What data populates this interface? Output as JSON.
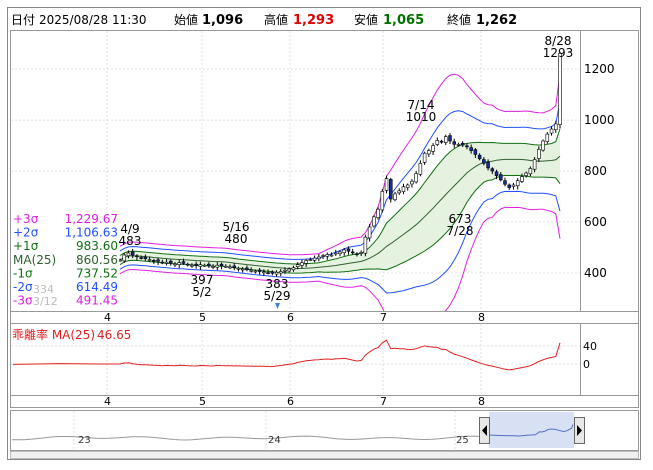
{
  "header": {
    "date_label": "日付",
    "datetime": "2025/08/28 11:30",
    "open_label": "始値",
    "open_value": "1,096",
    "high_label": "高値",
    "high_value": "1,293",
    "low_label": "安値",
    "low_value": "1,065",
    "close_label": "終値",
    "close_value": "1,262"
  },
  "colors": {
    "high": "#e00000",
    "low": "#007000",
    "band3": "#e020e0",
    "band2": "#2050ff",
    "band1": "#107010",
    "ma": "#306030",
    "candle_up": "#ffffff",
    "candle_down": "#1030a0",
    "deviation": "#e02020"
  },
  "legend": [
    {
      "label": "+3σ",
      "value": "1,229.67",
      "color": "#e020e0"
    },
    {
      "label": "+2σ",
      "value": "1,106.63",
      "color": "#2050ff"
    },
    {
      "label": "+1σ",
      "value": "983.60",
      "color": "#107010"
    },
    {
      "label": "MA(25)",
      "value": "860.56",
      "color": "#306030"
    },
    {
      "label": "-1σ",
      "value": "737.52",
      "color": "#107010"
    },
    {
      "label": "-2σ",
      "value": "614.49",
      "color": "#2050ff"
    },
    {
      "label": "-3σ",
      "value": "491.45",
      "color": "#e020e0"
    }
  ],
  "ghost_labels": [
    "334",
    "3/12"
  ],
  "price_axis": {
    "ticks": [
      "1200",
      "1000",
      "800",
      "600",
      "400"
    ]
  },
  "month_labels": [
    "4",
    "5",
    "6",
    "7",
    "8"
  ],
  "annotations": [
    {
      "date": "4/9",
      "value": "483"
    },
    {
      "date": "5/2",
      "value": "397"
    },
    {
      "date": "5/16",
      "value": "480"
    },
    {
      "date": "5/29",
      "value": "383"
    },
    {
      "date": "7/14",
      "value": "1010"
    },
    {
      "date": "7/28",
      "value": "673"
    },
    {
      "date": "8/28",
      "value": "1293"
    }
  ],
  "deviation": {
    "title": "乖離率 MA(25)",
    "value": "46.65",
    "ticks": [
      "40",
      "0"
    ]
  },
  "navigator": {
    "labels": [
      "23",
      "24",
      "25"
    ]
  },
  "chart_data": {
    "type": "candlestick",
    "ylim": [
      250,
      1350
    ],
    "series_close": [
      450,
      470,
      478,
      470,
      463,
      458,
      455,
      452,
      447,
      445,
      440,
      442,
      438,
      435,
      440,
      437,
      433,
      430,
      428,
      432,
      430,
      427,
      425,
      430,
      428,
      426,
      423,
      420,
      418,
      415,
      412,
      410,
      407,
      405,
      404,
      400,
      398,
      402,
      405,
      410,
      415,
      420,
      432,
      440,
      448,
      452,
      458,
      462,
      468,
      472,
      470,
      478,
      482,
      490,
      485,
      478,
      472,
      480,
      540,
      580,
      620,
      650,
      720,
      770,
      690,
      710,
      722,
      738,
      745,
      760,
      790,
      830,
      870,
      880,
      900,
      920,
      915,
      935,
      918,
      905,
      905,
      902,
      895,
      880,
      865,
      848,
      830,
      812,
      800,
      782,
      765,
      748,
      735,
      745,
      762,
      778,
      792,
      810,
      845,
      885,
      918,
      945,
      965,
      985,
      1262
    ]
  }
}
